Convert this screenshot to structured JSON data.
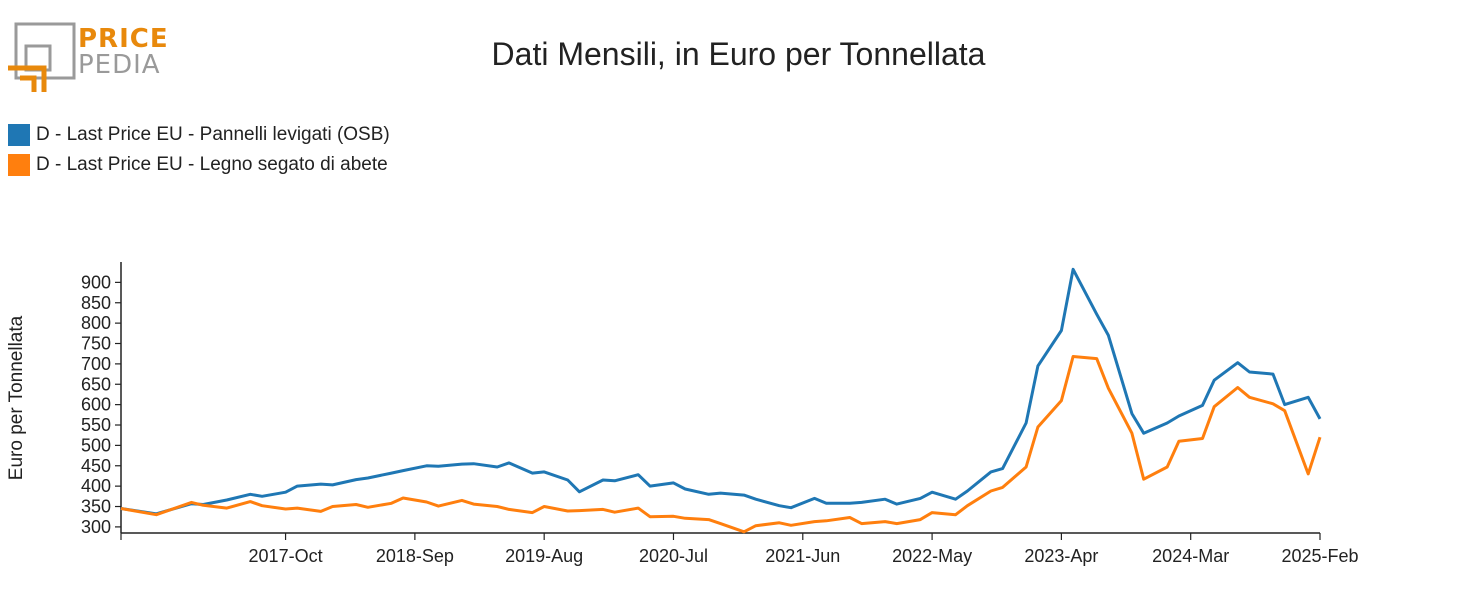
{
  "logo": {
    "line1": "PRICE",
    "line2": "PEDIA"
  },
  "chart_data": {
    "type": "line",
    "title": "Dati Mensili, in Euro per Tonnellata",
    "xlabel": "",
    "ylabel": "Euro per Tonnellata",
    "ylim": [
      285,
      950
    ],
    "yticks": [
      300,
      350,
      400,
      450,
      500,
      550,
      600,
      650,
      700,
      750,
      800,
      850,
      900
    ],
    "xticks": [
      "2017-Oct",
      "2018-Sep",
      "2019-Aug",
      "2020-Jul",
      "2021-Jun",
      "2022-May",
      "2023-Apr",
      "2024-Mar",
      "2025-Feb"
    ],
    "x_start": "2016-Aug",
    "x_end": "2025-Feb",
    "grid": false,
    "legend_position": "top-left",
    "series": [
      {
        "name": "D - Last Price EU - Pannelli levigati (OSB)",
        "color": "#1f77b4",
        "points": [
          [
            "2016-Aug",
            345
          ],
          [
            "2016-Nov",
            332
          ],
          [
            "2017-Feb",
            357
          ],
          [
            "2017-Mar",
            355
          ],
          [
            "2017-May",
            366
          ],
          [
            "2017-Jul",
            380
          ],
          [
            "2017-Aug",
            375
          ],
          [
            "2017-Oct",
            385
          ],
          [
            "2017-Nov",
            400
          ],
          [
            "2018-Jan",
            405
          ],
          [
            "2018-Feb",
            403
          ],
          [
            "2018-Apr",
            416
          ],
          [
            "2018-May",
            420
          ],
          [
            "2018-Jul",
            432
          ],
          [
            "2018-Aug",
            438
          ],
          [
            "2018-Oct",
            450
          ],
          [
            "2018-Nov",
            449
          ],
          [
            "2019-Jan",
            454
          ],
          [
            "2019-Feb",
            455
          ],
          [
            "2019-Apr",
            447
          ],
          [
            "2019-May",
            457
          ],
          [
            "2019-Jul",
            432
          ],
          [
            "2019-Aug",
            435
          ],
          [
            "2019-Oct",
            415
          ],
          [
            "2019-Nov",
            386
          ],
          [
            "2020-Jan",
            415
          ],
          [
            "2020-Feb",
            413
          ],
          [
            "2020-Apr",
            428
          ],
          [
            "2020-May",
            400
          ],
          [
            "2020-Jul",
            408
          ],
          [
            "2020-Aug",
            393
          ],
          [
            "2020-Oct",
            380
          ],
          [
            "2020-Nov",
            383
          ],
          [
            "2021-Jan",
            378
          ],
          [
            "2021-Feb",
            368
          ],
          [
            "2021-Apr",
            352
          ],
          [
            "2021-May",
            347
          ],
          [
            "2021-Jul",
            370
          ],
          [
            "2021-Aug",
            358
          ],
          [
            "2021-Oct",
            358
          ],
          [
            "2021-Nov",
            360
          ],
          [
            "2022-Jan",
            368
          ],
          [
            "2022-Feb",
            356
          ],
          [
            "2022-Apr",
            370
          ],
          [
            "2022-May",
            385
          ],
          [
            "2022-Jul",
            368
          ],
          [
            "2022-Aug",
            388
          ],
          [
            "2022-Oct",
            435
          ],
          [
            "2022-Nov",
            443
          ],
          [
            "2023-Jan",
            555
          ],
          [
            "2023-Feb",
            695
          ],
          [
            "2023-Apr",
            782
          ],
          [
            "2023-May",
            932
          ],
          [
            "2023-Jul",
            822
          ],
          [
            "2023-Aug",
            770
          ],
          [
            "2023-Oct",
            578
          ],
          [
            "2023-Nov",
            530
          ],
          [
            "2024-Jan",
            555
          ],
          [
            "2024-Feb",
            572
          ],
          [
            "2024-Apr",
            598
          ],
          [
            "2024-May",
            660
          ],
          [
            "2024-Jul",
            703
          ],
          [
            "2024-Aug",
            680
          ],
          [
            "2024-Oct",
            675
          ],
          [
            "2024-Nov",
            600
          ],
          [
            "2025-Jan",
            618
          ],
          [
            "2025-Feb",
            565
          ]
        ]
      },
      {
        "name": "D - Last Price EU - Legno segato di abete",
        "color": "#ff7f0e",
        "points": [
          [
            "2016-Aug",
            345
          ],
          [
            "2016-Nov",
            330
          ],
          [
            "2017-Feb",
            360
          ],
          [
            "2017-Mar",
            353
          ],
          [
            "2017-May",
            346
          ],
          [
            "2017-Jul",
            362
          ],
          [
            "2017-Aug",
            352
          ],
          [
            "2017-Oct",
            344
          ],
          [
            "2017-Nov",
            346
          ],
          [
            "2018-Jan",
            338
          ],
          [
            "2018-Feb",
            350
          ],
          [
            "2018-Apr",
            355
          ],
          [
            "2018-May",
            348
          ],
          [
            "2018-Jul",
            358
          ],
          [
            "2018-Aug",
            371
          ],
          [
            "2018-Oct",
            361
          ],
          [
            "2018-Nov",
            351
          ],
          [
            "2019-Jan",
            365
          ],
          [
            "2019-Feb",
            356
          ],
          [
            "2019-Apr",
            350
          ],
          [
            "2019-May",
            343
          ],
          [
            "2019-Jul",
            335
          ],
          [
            "2019-Aug",
            350
          ],
          [
            "2019-Oct",
            339
          ],
          [
            "2019-Nov",
            340
          ],
          [
            "2020-Jan",
            343
          ],
          [
            "2020-Feb",
            336
          ],
          [
            "2020-Apr",
            346
          ],
          [
            "2020-May",
            325
          ],
          [
            "2020-Jul",
            326
          ],
          [
            "2020-Aug",
            321
          ],
          [
            "2020-Oct",
            318
          ],
          [
            "2020-Nov",
            308
          ],
          [
            "2021-Jan",
            288
          ],
          [
            "2021-Feb",
            303
          ],
          [
            "2021-Apr",
            310
          ],
          [
            "2021-May",
            304
          ],
          [
            "2021-Jul",
            313
          ],
          [
            "2021-Aug",
            315
          ],
          [
            "2021-Oct",
            323
          ],
          [
            "2021-Nov",
            308
          ],
          [
            "2022-Jan",
            313
          ],
          [
            "2022-Feb",
            308
          ],
          [
            "2022-Apr",
            318
          ],
          [
            "2022-May",
            335
          ],
          [
            "2022-Jul",
            330
          ],
          [
            "2022-Aug",
            352
          ],
          [
            "2022-Oct",
            388
          ],
          [
            "2022-Nov",
            397
          ],
          [
            "2023-Jan",
            447
          ],
          [
            "2023-Feb",
            545
          ],
          [
            "2023-Apr",
            610
          ],
          [
            "2023-May",
            718
          ],
          [
            "2023-Jul",
            713
          ],
          [
            "2023-Aug",
            640
          ],
          [
            "2023-Oct",
            530
          ],
          [
            "2023-Nov",
            417
          ],
          [
            "2024-Jan",
            447
          ],
          [
            "2024-Feb",
            510
          ],
          [
            "2024-Apr",
            517
          ],
          [
            "2024-May",
            595
          ],
          [
            "2024-Jul",
            642
          ],
          [
            "2024-Aug",
            618
          ],
          [
            "2024-Oct",
            602
          ],
          [
            "2024-Nov",
            585
          ],
          [
            "2025-Jan",
            430
          ],
          [
            "2025-Feb",
            520
          ]
        ]
      }
    ]
  }
}
